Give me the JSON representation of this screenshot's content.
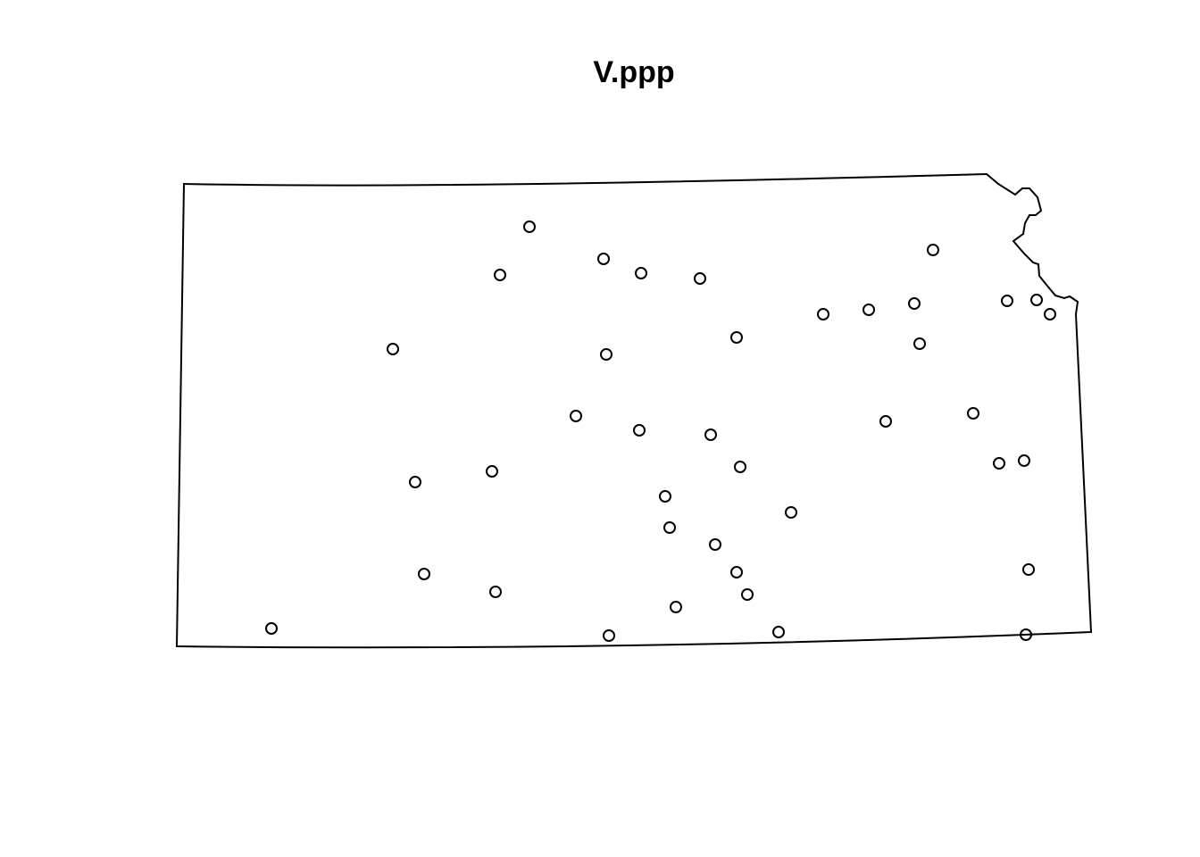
{
  "chart_data": {
    "type": "scatter",
    "title": "V.ppp",
    "x": [
      395,
      362,
      478,
      520,
      586,
      847,
      724,
      775,
      826,
      930,
      963,
      978,
      627,
      832,
      242,
      481,
      447,
      518,
      598,
      794,
      892,
      921,
      949,
      631,
      267,
      353,
      547,
      688,
      552,
      603,
      277,
      627,
      357,
      639,
      954,
      559,
      106,
      484,
      674,
      951
    ],
    "values": [
      471,
      417,
      435,
      419,
      413,
      445,
      373,
      378,
      385,
      388,
      389,
      373,
      347,
      340,
      334,
      328,
      259,
      243,
      238,
      253,
      262,
      206,
      209,
      202,
      185,
      197,
      169,
      151,
      134,
      115,
      82,
      84,
      62,
      59,
      87,
      45,
      21,
      13,
      17,
      14
    ],
    "xlim": [
      0,
      1024
    ],
    "ylim": [
      0,
      530
    ],
    "color": "#000000"
  }
}
